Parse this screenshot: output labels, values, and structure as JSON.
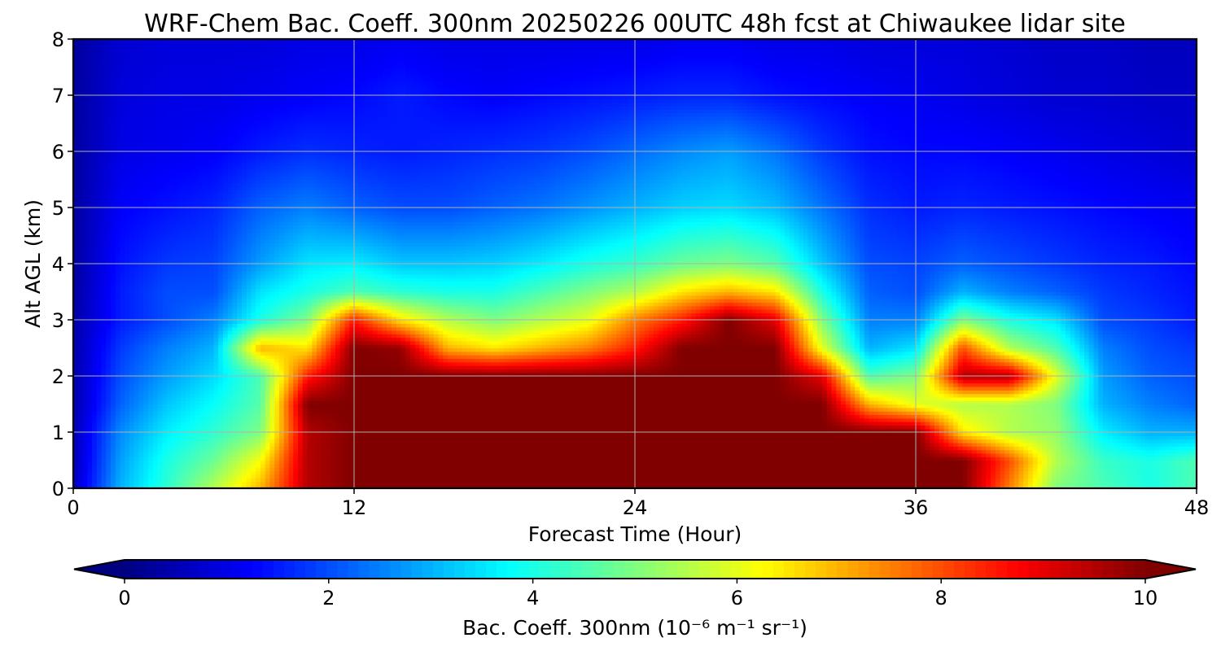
{
  "chart_data": {
    "type": "heatmap",
    "title": "WRF-Chem Bac. Coeff. 300nm  20250226 00UTC 48h fcst at Chiwaukee lidar site",
    "xlabel": "Forecast Time (Hour)",
    "ylabel": "Alt AGL (km)",
    "xlim": [
      0,
      48
    ],
    "ylim": [
      0,
      8
    ],
    "xticks": [
      0,
      12,
      24,
      36,
      48
    ],
    "yticks": [
      0,
      1,
      2,
      3,
      4,
      5,
      6,
      7,
      8
    ],
    "grid": true,
    "colormap": "jet",
    "colorbar": {
      "label": "Bac. Coeff. 300nm  (10⁻⁶ m⁻¹ sr⁻¹)",
      "range": [
        0,
        10
      ],
      "ticks": [
        0,
        2,
        4,
        6,
        8,
        10
      ],
      "extend": "both",
      "orientation": "horizontal"
    },
    "x": [
      0,
      2,
      4,
      6,
      8,
      10,
      12,
      14,
      16,
      18,
      20,
      22,
      24,
      26,
      28,
      30,
      32,
      34,
      36,
      38,
      40,
      42,
      44,
      46,
      48
    ],
    "y": [
      0,
      0.5,
      1,
      1.5,
      2,
      2.5,
      3,
      3.5,
      4,
      5,
      6,
      7,
      8
    ],
    "z": [
      [
        0.6,
        3.0,
        4.2,
        5.5,
        7.0,
        9.5,
        10,
        10,
        10,
        10,
        10,
        10,
        10,
        10,
        10,
        10,
        10,
        10,
        10,
        10,
        7.5,
        5.0,
        4.5,
        4.0,
        4.5
      ],
      [
        0.5,
        2.8,
        4.0,
        4.8,
        6.2,
        9.5,
        10,
        10,
        10,
        10,
        10,
        10,
        10,
        10,
        10,
        10,
        10,
        10,
        10,
        10,
        8.0,
        5.5,
        4.3,
        4.0,
        4.5
      ],
      [
        0.5,
        2.6,
        3.6,
        4.2,
        5.0,
        9.5,
        10,
        10,
        10,
        10,
        10,
        10,
        10,
        10,
        10,
        10,
        10,
        10,
        10,
        6.5,
        5.5,
        5.2,
        3.6,
        3.0,
        3.0
      ],
      [
        0.4,
        2.2,
        3.2,
        3.8,
        4.6,
        10,
        10,
        10,
        10,
        10,
        10,
        10,
        10,
        10,
        10,
        10,
        10,
        7.0,
        6.0,
        5.5,
        5.5,
        5.0,
        3.0,
        2.5,
        2.2
      ],
      [
        0.4,
        2.0,
        2.8,
        3.4,
        4.5,
        8.5,
        10,
        10,
        10,
        10,
        10,
        10,
        10,
        10,
        10,
        10,
        9.0,
        4.5,
        5.0,
        9.5,
        9.5,
        6.0,
        2.8,
        2.2,
        2.0
      ],
      [
        0.4,
        1.8,
        2.5,
        3.0,
        7.0,
        6.5,
        10,
        9.8,
        7.0,
        6.5,
        7.0,
        7.5,
        8.5,
        10,
        10,
        10,
        6.0,
        3.0,
        3.5,
        8.0,
        5.5,
        4.5,
        2.5,
        2.0,
        1.8
      ],
      [
        0.4,
        1.5,
        2.0,
        2.5,
        4.0,
        5.0,
        8.5,
        6.5,
        5.5,
        5.0,
        5.5,
        6.0,
        7.5,
        8.5,
        10,
        9.0,
        5.0,
        2.5,
        2.5,
        5.0,
        4.0,
        3.5,
        2.0,
        1.8,
        1.5
      ],
      [
        0.3,
        1.5,
        2.0,
        2.0,
        3.5,
        4.0,
        4.5,
        4.2,
        4.0,
        4.0,
        4.5,
        5.0,
        5.5,
        6.5,
        7.0,
        6.5,
        4.0,
        2.2,
        2.0,
        3.0,
        2.5,
        2.2,
        1.8,
        1.6,
        1.4
      ],
      [
        0.3,
        1.4,
        1.8,
        1.9,
        2.8,
        3.5,
        3.6,
        3.2,
        3.2,
        3.3,
        3.6,
        4.0,
        4.3,
        4.8,
        5.0,
        4.6,
        3.2,
        2.0,
        1.9,
        2.2,
        2.0,
        1.8,
        1.6,
        1.5,
        1.3
      ],
      [
        0.3,
        1.2,
        1.4,
        1.6,
        2.2,
        2.5,
        2.2,
        2.0,
        2.0,
        2.2,
        2.4,
        2.7,
        3.0,
        3.3,
        3.4,
        3.1,
        2.4,
        1.7,
        1.5,
        1.6,
        1.5,
        1.4,
        1.3,
        1.2,
        1.1
      ],
      [
        0.3,
        1.0,
        1.1,
        1.2,
        1.5,
        1.7,
        1.6,
        1.5,
        1.6,
        1.7,
        1.8,
        2.0,
        2.3,
        2.6,
        2.8,
        2.4,
        1.8,
        1.4,
        1.3,
        1.3,
        1.2,
        1.1,
        1.0,
        0.9,
        0.8
      ],
      [
        0.3,
        0.9,
        1.0,
        1.0,
        1.1,
        1.2,
        1.3,
        1.5,
        1.3,
        1.2,
        1.3,
        1.4,
        1.5,
        1.6,
        1.6,
        1.4,
        1.3,
        1.2,
        1.1,
        1.0,
        0.9,
        0.8,
        0.8,
        0.7,
        0.7
      ],
      [
        0.3,
        0.8,
        0.9,
        0.9,
        0.9,
        1.0,
        1.0,
        1.1,
        1.0,
        1.0,
        1.0,
        1.0,
        1.0,
        1.1,
        1.1,
        1.0,
        1.0,
        0.9,
        0.9,
        0.9,
        0.8,
        0.7,
        0.7,
        0.6,
        0.6
      ]
    ]
  }
}
